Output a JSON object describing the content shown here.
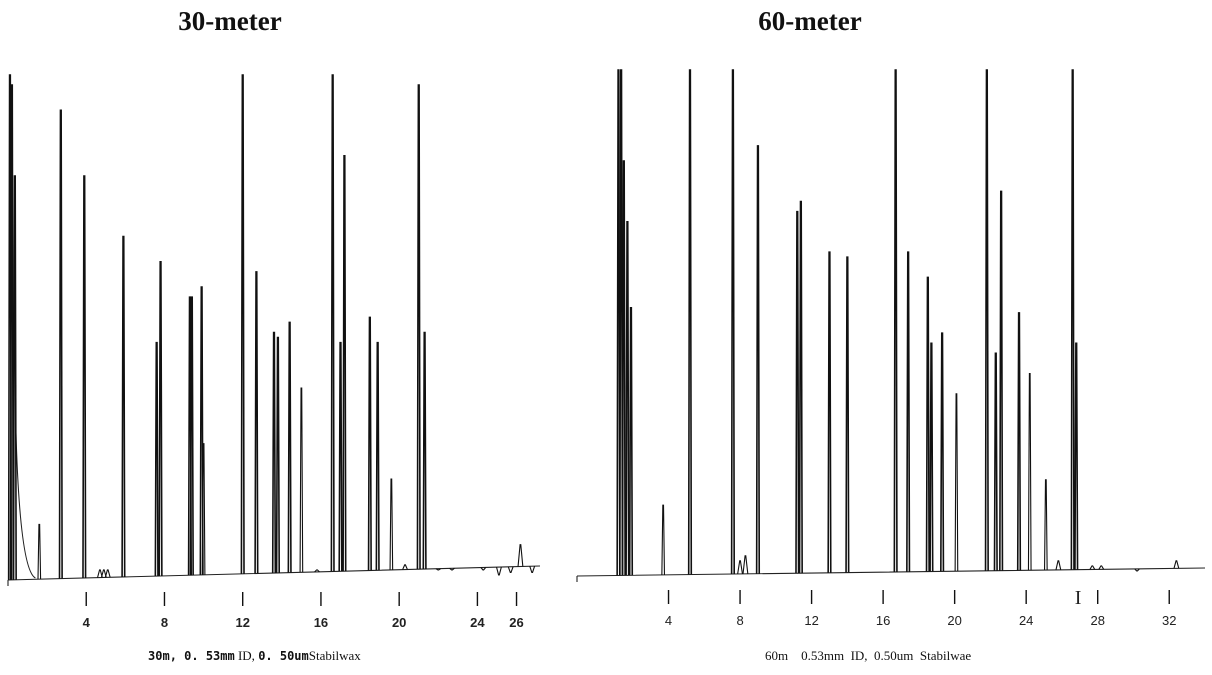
{
  "chart_data": [
    {
      "type": "line",
      "title": "30-meter",
      "x_ticks": [
        4,
        8,
        12,
        16,
        20,
        24,
        26
      ],
      "xlim": [
        0,
        27.2
      ],
      "ylim": [
        0,
        100
      ],
      "caption_parts": [
        "30m",
        "0. 53mm",
        "ID,",
        "0. 50um",
        "Stabilwax"
      ],
      "peaks": [
        {
          "x": 0.1,
          "y": 100
        },
        {
          "x": 0.2,
          "y": 98
        },
        {
          "x": 0.35,
          "y": 80
        },
        {
          "x": 1.6,
          "y": 11
        },
        {
          "x": 2.7,
          "y": 93
        },
        {
          "x": 4.7,
          "y": 2
        },
        {
          "x": 4.9,
          "y": 2
        },
        {
          "x": 5.1,
          "y": 2
        },
        {
          "x": 3.9,
          "y": 80
        },
        {
          "x": 5.9,
          "y": 68
        },
        {
          "x": 7.6,
          "y": 47
        },
        {
          "x": 7.8,
          "y": 63
        },
        {
          "x": 9.3,
          "y": 56
        },
        {
          "x": 9.4,
          "y": 56
        },
        {
          "x": 9.9,
          "y": 58
        },
        {
          "x": 10.0,
          "y": 27
        },
        {
          "x": 12.0,
          "y": 100
        },
        {
          "x": 12.7,
          "y": 61
        },
        {
          "x": 13.6,
          "y": 49
        },
        {
          "x": 13.8,
          "y": 48
        },
        {
          "x": 14.4,
          "y": 51
        },
        {
          "x": 15.0,
          "y": 38
        },
        {
          "x": 16.6,
          "y": 100
        },
        {
          "x": 17.0,
          "y": 47
        },
        {
          "x": 17.2,
          "y": 84
        },
        {
          "x": 18.5,
          "y": 52
        },
        {
          "x": 18.9,
          "y": 47
        },
        {
          "x": 19.6,
          "y": 20
        },
        {
          "x": 21.0,
          "y": 98
        },
        {
          "x": 21.3,
          "y": 49
        },
        {
          "x": 15.8,
          "y": 2
        },
        {
          "x": 20.3,
          "y": 3
        },
        {
          "x": 22.0,
          "y": 2
        },
        {
          "x": 22.7,
          "y": 2
        },
        {
          "x": 24.3,
          "y": 2
        },
        {
          "x": 25.1,
          "y": 1
        },
        {
          "x": 25.7,
          "y": 1.5
        },
        {
          "x": 26.2,
          "y": 7
        },
        {
          "x": 26.8,
          "y": 1.5
        }
      ]
    },
    {
      "type": "line",
      "title": "60-meter",
      "x_ticks": [
        4,
        8,
        12,
        16,
        20,
        24,
        28,
        32
      ],
      "xlim": [
        0,
        34
      ],
      "ylim": [
        0,
        100
      ],
      "marker": "I",
      "caption": "60m    0.53mm  ID,  0.50um  Stabilwae",
      "peaks": [
        {
          "x": 1.2,
          "y": 100
        },
        {
          "x": 1.35,
          "y": 100
        },
        {
          "x": 1.5,
          "y": 82
        },
        {
          "x": 1.7,
          "y": 70
        },
        {
          "x": 1.9,
          "y": 53
        },
        {
          "x": 3.7,
          "y": 14
        },
        {
          "x": 5.2,
          "y": 100
        },
        {
          "x": 7.6,
          "y": 100
        },
        {
          "x": 8.0,
          "y": 3
        },
        {
          "x": 8.3,
          "y": 4
        },
        {
          "x": 9.0,
          "y": 85
        },
        {
          "x": 11.2,
          "y": 72
        },
        {
          "x": 11.4,
          "y": 74
        },
        {
          "x": 13.0,
          "y": 64
        },
        {
          "x": 14.0,
          "y": 63
        },
        {
          "x": 16.7,
          "y": 100
        },
        {
          "x": 17.4,
          "y": 64
        },
        {
          "x": 18.5,
          "y": 59
        },
        {
          "x": 18.7,
          "y": 46
        },
        {
          "x": 19.3,
          "y": 48
        },
        {
          "x": 20.1,
          "y": 36
        },
        {
          "x": 21.8,
          "y": 100
        },
        {
          "x": 22.3,
          "y": 44
        },
        {
          "x": 22.6,
          "y": 76
        },
        {
          "x": 23.6,
          "y": 52
        },
        {
          "x": 24.2,
          "y": 40
        },
        {
          "x": 25.1,
          "y": 19
        },
        {
          "x": 25.8,
          "y": 3
        },
        {
          "x": 26.6,
          "y": 100
        },
        {
          "x": 26.8,
          "y": 46
        },
        {
          "x": 27.7,
          "y": 2
        },
        {
          "x": 28.2,
          "y": 2
        },
        {
          "x": 30.2,
          "y": 1
        },
        {
          "x": 32.4,
          "y": 3
        }
      ]
    }
  ]
}
